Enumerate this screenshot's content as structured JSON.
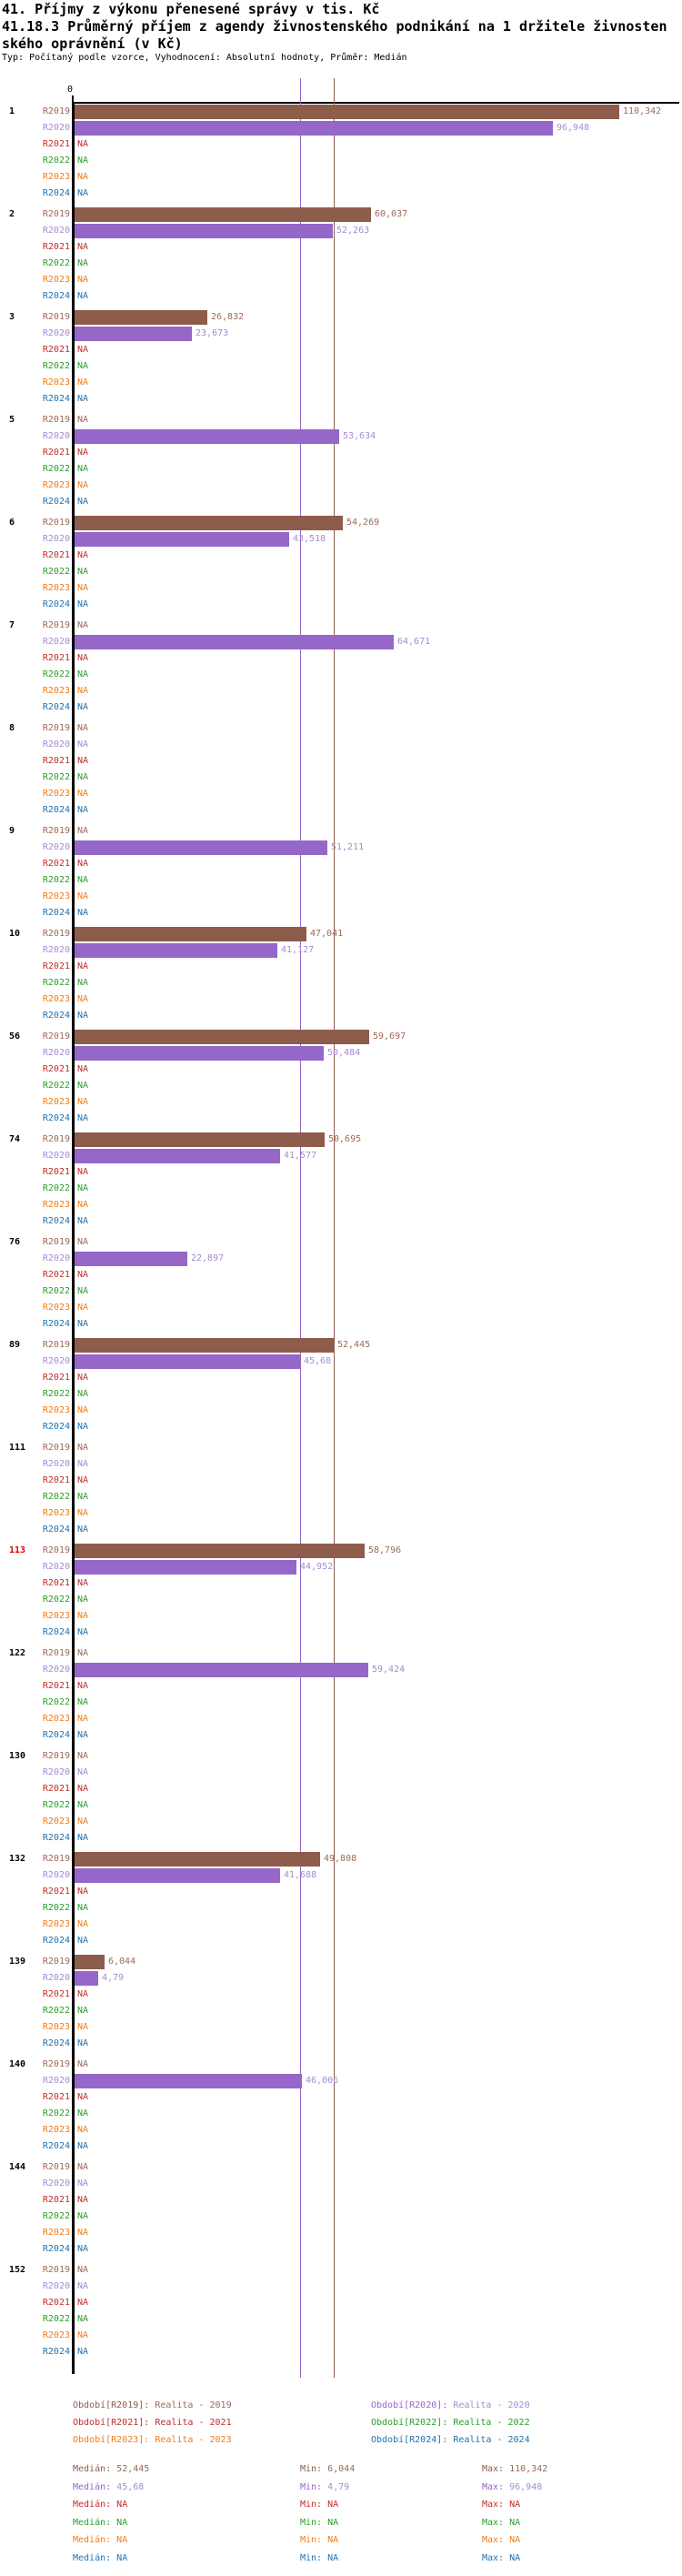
{
  "header": {
    "title_line1": "41. Příjmy z výkonu přenesené správy v tis. Kč",
    "title_line2": "41.18.3 Průměrný příjem z agendy živnostenského podnikání na 1 držitele živnosten",
    "title_line3": "ského oprávnění (v Kč)",
    "meta_line": "Typ: Počítaný podle vzorce, Vyhodnocení: Absolutní hodnoty, Průměr: Medián"
  },
  "stats_labels": {
    "median": "Medián:",
    "min": "Min:",
    "max": "Max:"
  },
  "chart_data": {
    "type": "bar",
    "orientation": "horizontal",
    "title": "41.18.3 Průměrný příjem z agendy živnostenského podnikání na 1 držitele živnostenského oprávnění (v Kč)",
    "x_axis": {
      "zero_label": "0",
      "xmax": 110.342,
      "decimal_separator": "comma"
    },
    "na_label": "NA",
    "series": [
      {
        "id": "R2019",
        "legend_prefix": "Období[R2019]:",
        "legend_value": "Realita - 2019",
        "color": "#8e5c4b",
        "text_color": "#9d6a57",
        "median": "52,445",
        "min": "6,044",
        "max": "110,342"
      },
      {
        "id": "R2020",
        "legend_prefix": "Období[R2020]:",
        "legend_value": "Realita - 2020",
        "color": "#9467c8",
        "text_color": "#a68bd4",
        "median": "45,68",
        "min": "4,79",
        "max": "96,948"
      },
      {
        "id": "R2021",
        "legend_prefix": "Období[R2021]:",
        "legend_value": "Realita - 2021",
        "color": "#c22d2d",
        "text_color": "#c22d2d",
        "median": "NA",
        "min": "NA",
        "max": "NA"
      },
      {
        "id": "R2022",
        "legend_prefix": "Období[R2022]:",
        "legend_value": "Realita - 2022",
        "color": "#2c9e2c",
        "text_color": "#2c9e2c",
        "median": "NA",
        "min": "NA",
        "max": "NA"
      },
      {
        "id": "R2023",
        "legend_prefix": "Období[R2023]:",
        "legend_value": "Realita - 2023",
        "color": "#f07d18",
        "text_color": "#f07d18",
        "median": "NA",
        "min": "NA",
        "max": "NA"
      },
      {
        "id": "R2024",
        "legend_prefix": "Období[R2024]:",
        "legend_value": "Realita - 2024",
        "color": "#2273b0",
        "text_color": "#2273b0",
        "median": "NA",
        "min": "NA",
        "max": "NA"
      }
    ],
    "groups": [
      {
        "label": "1",
        "label_color": "#000000",
        "values": [
          "110,342",
          "96,948",
          null,
          null,
          null,
          null
        ]
      },
      {
        "label": "2",
        "label_color": "#000000",
        "values": [
          "60,037",
          "52,263",
          null,
          null,
          null,
          null
        ]
      },
      {
        "label": "3",
        "label_color": "#000000",
        "values": [
          "26,832",
          "23,673",
          null,
          null,
          null,
          null
        ]
      },
      {
        "label": "5",
        "label_color": "#000000",
        "values": [
          null,
          "53,634",
          null,
          null,
          null,
          null
        ]
      },
      {
        "label": "6",
        "label_color": "#000000",
        "values": [
          "54,269",
          "43,518",
          null,
          null,
          null,
          null
        ]
      },
      {
        "label": "7",
        "label_color": "#000000",
        "values": [
          null,
          "64,671",
          null,
          null,
          null,
          null
        ]
      },
      {
        "label": "8",
        "label_color": "#000000",
        "values": [
          null,
          null,
          null,
          null,
          null,
          null
        ]
      },
      {
        "label": "9",
        "label_color": "#000000",
        "values": [
          null,
          "51,211",
          null,
          null,
          null,
          null
        ]
      },
      {
        "label": "10",
        "label_color": "#000000",
        "values": [
          "47,041",
          "41,127",
          null,
          null,
          null,
          null
        ]
      },
      {
        "label": "56",
        "label_color": "#000000",
        "values": [
          "59,697",
          "50,484",
          null,
          null,
          null,
          null
        ]
      },
      {
        "label": "74",
        "label_color": "#000000",
        "values": [
          "50,695",
          "41,577",
          null,
          null,
          null,
          null
        ]
      },
      {
        "label": "76",
        "label_color": "#000000",
        "values": [
          null,
          "22,897",
          null,
          null,
          null,
          null
        ]
      },
      {
        "label": "89",
        "label_color": "#000000",
        "values": [
          "52,445",
          "45,68",
          null,
          null,
          null,
          null
        ]
      },
      {
        "label": "111",
        "label_color": "#000000",
        "values": [
          null,
          null,
          null,
          null,
          null,
          null
        ]
      },
      {
        "label": "113",
        "label_color": "#e60000",
        "values": [
          "58,796",
          "44,952",
          null,
          null,
          null,
          null
        ]
      },
      {
        "label": "122",
        "label_color": "#000000",
        "values": [
          null,
          "59,424",
          null,
          null,
          null,
          null
        ]
      },
      {
        "label": "130",
        "label_color": "#000000",
        "values": [
          null,
          null,
          null,
          null,
          null,
          null
        ]
      },
      {
        "label": "132",
        "label_color": "#000000",
        "values": [
          "49,808",
          "41,688",
          null,
          null,
          null,
          null
        ]
      },
      {
        "label": "139",
        "label_color": "#000000",
        "values": [
          "6,044",
          "4,79",
          null,
          null,
          null,
          null
        ]
      },
      {
        "label": "140",
        "label_color": "#000000",
        "values": [
          null,
          "46,006",
          null,
          null,
          null,
          null
        ]
      },
      {
        "label": "144",
        "label_color": "#000000",
        "values": [
          null,
          null,
          null,
          null,
          null,
          null
        ]
      },
      {
        "label": "152",
        "label_color": "#000000",
        "values": [
          null,
          null,
          null,
          null,
          null,
          null
        ]
      }
    ]
  }
}
